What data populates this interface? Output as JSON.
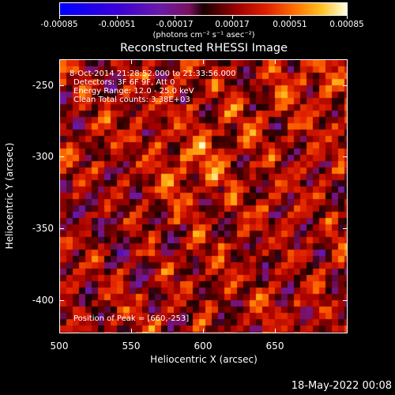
{
  "colorbar": {
    "tick_labels": [
      "-0.00085",
      "-0.00051",
      "-0.00017",
      "0.00017",
      "0.00051",
      "0.00085"
    ],
    "units": "(photons cm⁻² s⁻¹ asec⁻²)"
  },
  "plot": {
    "title": "Reconstructed RHESSI Image",
    "time_range": "8-Oct-2014 21:28:52.000 to 21:33:56.000",
    "detectors": "Detectors: 3F 6F 9F, Att 0",
    "energy_range": "Energy Range: 12.0 - 25.0 keV",
    "clean_counts": "Clean    Total counts: 3.38E+03",
    "peak": "Position of Peak = [660,-253]",
    "xlabel": "Heliocentric X (arcsec)",
    "ylabel": "Heliocentric Y (arcsec)",
    "x_ticks": [
      "500",
      "550",
      "600",
      "650"
    ],
    "y_ticks": [
      "-250",
      "-300",
      "-350",
      "-400"
    ]
  },
  "footer": {
    "date": "18-May-2022 00:08"
  }
}
